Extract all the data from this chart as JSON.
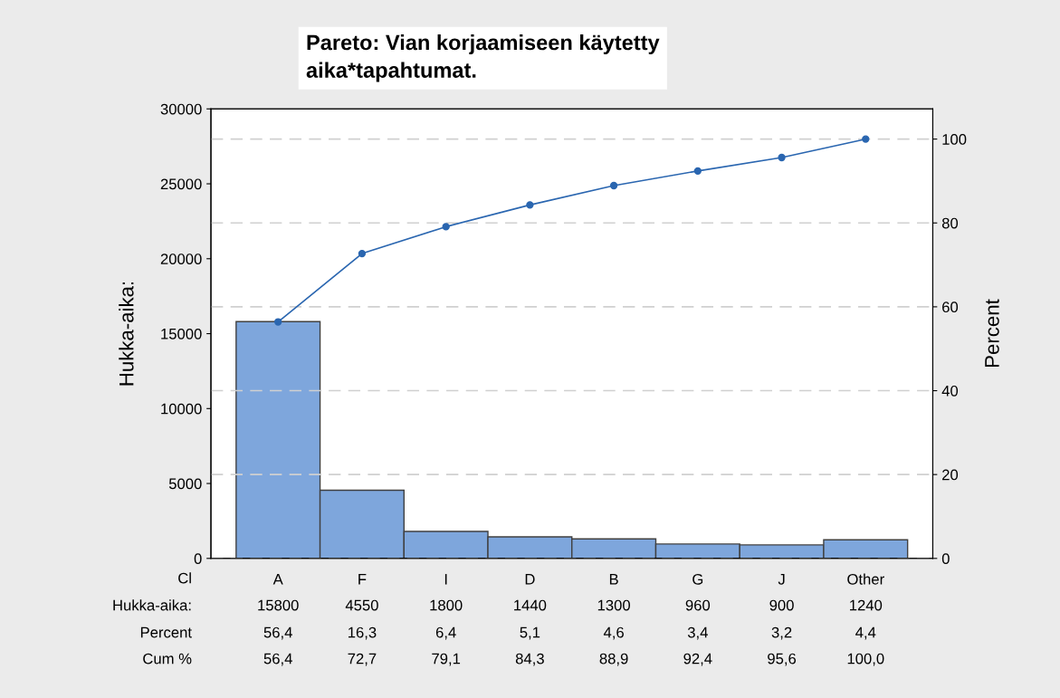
{
  "chart_data": {
    "type": "bar",
    "title": "Pareto: Vian korjaamiseen käytetty\naika*tapahtumat.",
    "ylabel": "Hukka-aika:",
    "y2label": "Percent",
    "categories": [
      "A",
      "F",
      "I",
      "D",
      "B",
      "G",
      "J",
      "Other"
    ],
    "series": [
      {
        "color": "#7ea6dc",
        "values": [
          15800,
          4550,
          1800,
          1440,
          1300,
          960,
          900,
          1240
        ],
        "value_labels": [
          "15800",
          "4550",
          "1800",
          "1440",
          "1300",
          "960",
          "900",
          "1240"
        ]
      },
      {
        "type": "line",
        "axis": "y2",
        "color": "#2a66b0",
        "marker": "circle",
        "values": [
          56.4,
          72.7,
          79.1,
          84.3,
          88.9,
          92.4,
          95.6,
          100.0
        ],
        "value_labels": [
          "56,4",
          "72,7",
          "79,1",
          "84,3",
          "88,9",
          "92,4",
          "95,6",
          "100,0"
        ]
      }
    ],
    "annotations": [
      "Cl",
      "Hukka-aika:",
      "Percent",
      "Cum %",
      "56,4",
      "16,3",
      "6,4",
      "5,1",
      "4,6",
      "3,4",
      "3,2",
      "4,4"
    ],
    "ylim": [
      0,
      30000
    ],
    "yticks": [
      0,
      5000,
      10000,
      15000,
      20000,
      25000,
      30000
    ],
    "y2lim": [
      0,
      107.2
    ],
    "y2ticks": [
      0,
      20,
      40,
      60,
      80,
      100
    ],
    "grid": "y2",
    "legend": false
  }
}
